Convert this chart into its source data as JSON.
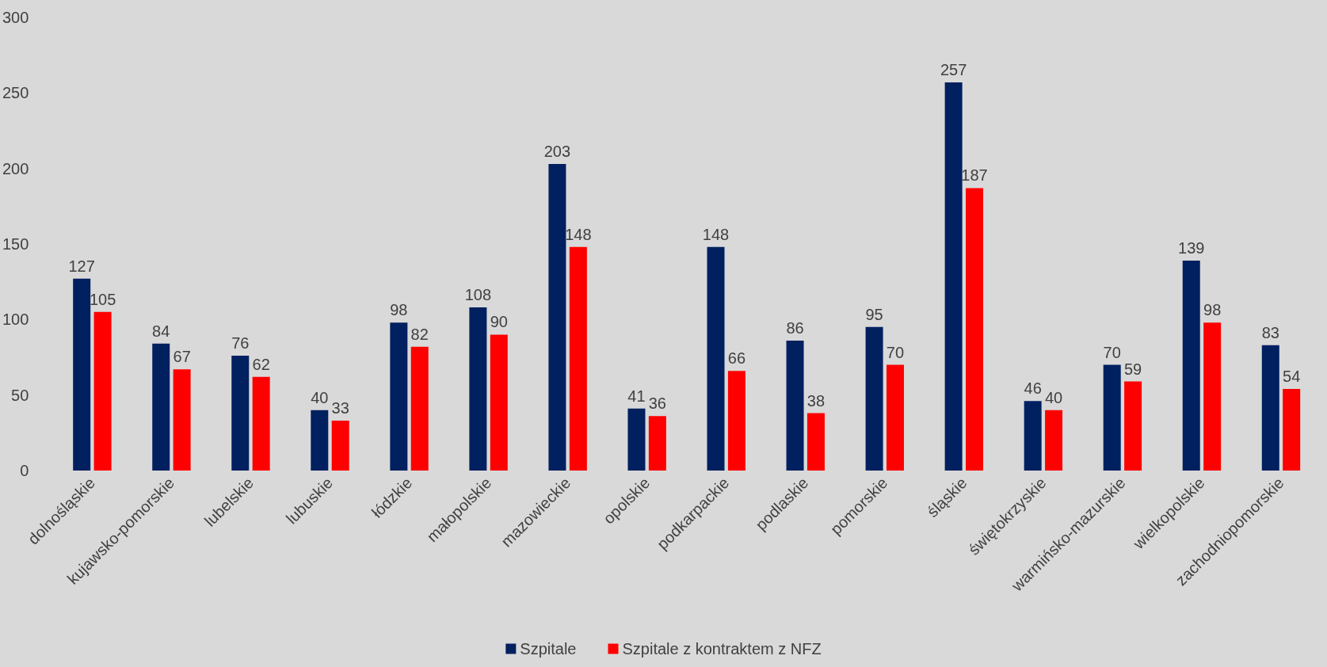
{
  "chart_data": {
    "type": "bar",
    "categories": [
      "dolnośląskie",
      "kujawsko-pomorskie",
      "lubelskie",
      "lubuskie",
      "łódzkie",
      "małopolskie",
      "mazowieckie",
      "opolskie",
      "podkarpackie",
      "podlaskie",
      "pomorskie",
      "śląskie",
      "świętokrzyskie",
      "warmińsko-mazurskie",
      "wielkopolskie",
      "zachodniopomorskie"
    ],
    "series": [
      {
        "name": "Szpitale",
        "color": "#002060",
        "values": [
          127,
          84,
          76,
          40,
          98,
          108,
          203,
          41,
          148,
          86,
          95,
          257,
          46,
          70,
          139,
          83
        ]
      },
      {
        "name": "Szpitale z kontraktem z NFZ",
        "color": "#ff0000",
        "values": [
          105,
          67,
          62,
          33,
          82,
          90,
          148,
          36,
          66,
          38,
          70,
          187,
          40,
          59,
          98,
          54
        ]
      }
    ],
    "ylim": [
      0,
      300
    ],
    "yticks": [
      0,
      50,
      100,
      150,
      200,
      250,
      300
    ],
    "grid": false,
    "legend": "bottom",
    "data_labels": true
  }
}
